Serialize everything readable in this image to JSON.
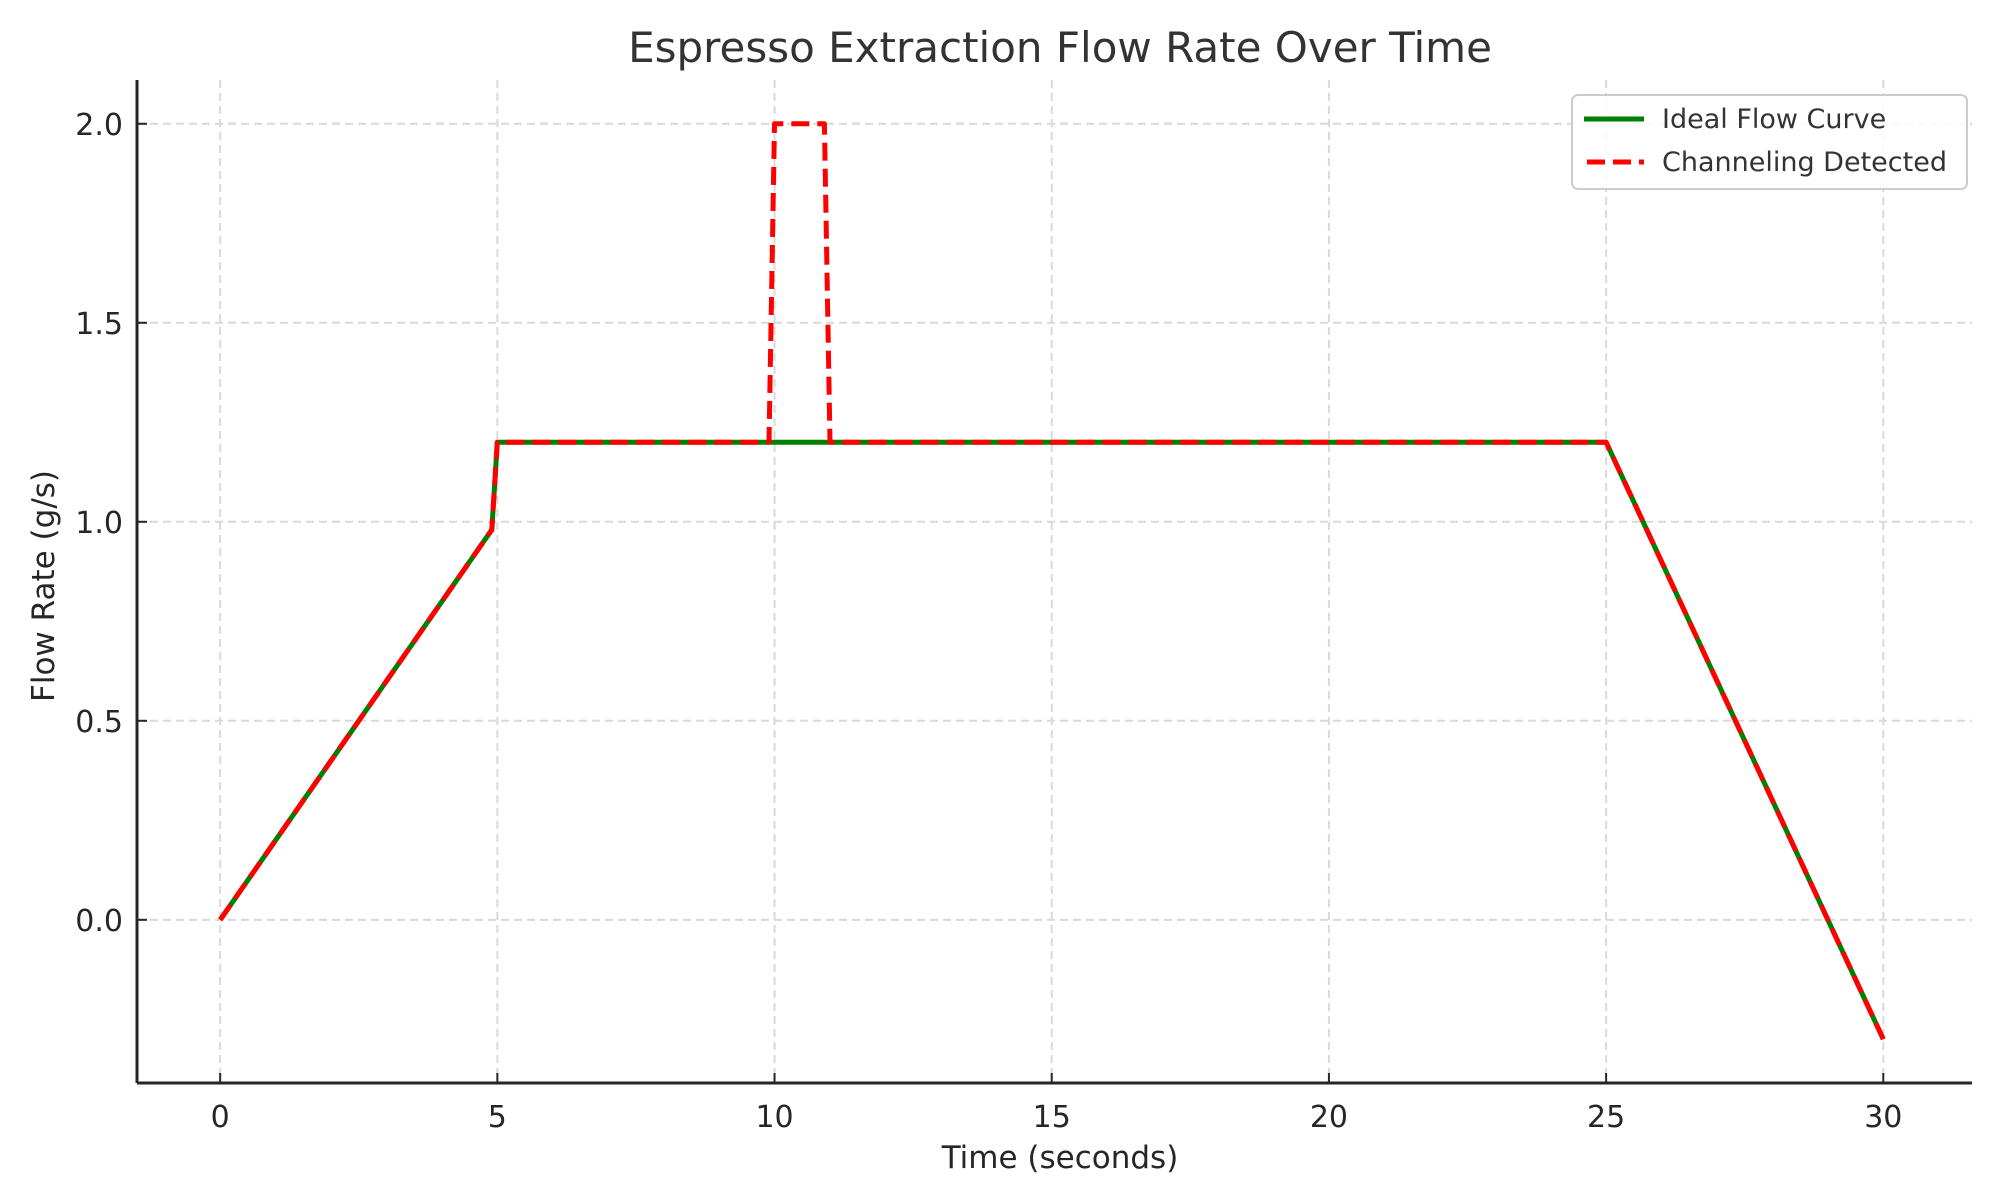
{
  "chart_data": {
    "type": "line",
    "title": "Espresso Extraction Flow Rate Over Time",
    "xlabel": "Time (seconds)",
    "ylabel": "Flow Rate (g/s)",
    "xlim": [
      -1.5,
      31.6
    ],
    "ylim": [
      -0.41,
      2.11
    ],
    "xticks": [
      0,
      5,
      10,
      15,
      20,
      25,
      30
    ],
    "xtick_labels": [
      "0",
      "5",
      "10",
      "15",
      "20",
      "25",
      "30"
    ],
    "yticks": [
      0.0,
      0.5,
      1.0,
      1.5,
      2.0
    ],
    "ytick_labels": [
      "0.0",
      "0.5",
      "1.0",
      "1.5",
      "2.0"
    ],
    "grid": true,
    "legend_position": "upper right",
    "series": [
      {
        "name": "Ideal Flow Curve",
        "color": "#008000",
        "style": "solid",
        "x": [
          0,
          4.9,
          5.0,
          10.0,
          11.0,
          24.9,
          25.0,
          30.0
        ],
        "y": [
          0.0,
          0.98,
          1.2,
          1.2,
          1.2,
          1.2,
          1.2,
          -0.3
        ]
      },
      {
        "name": "Channeling Detected",
        "color": "#ff0000",
        "style": "dashed",
        "x": [
          0,
          4.9,
          5.0,
          9.9,
          10.0,
          10.9,
          11.0,
          24.9,
          25.0,
          30.0
        ],
        "y": [
          0.0,
          0.98,
          1.2,
          1.2,
          2.0,
          2.0,
          1.2,
          1.2,
          1.2,
          -0.3
        ]
      }
    ]
  }
}
